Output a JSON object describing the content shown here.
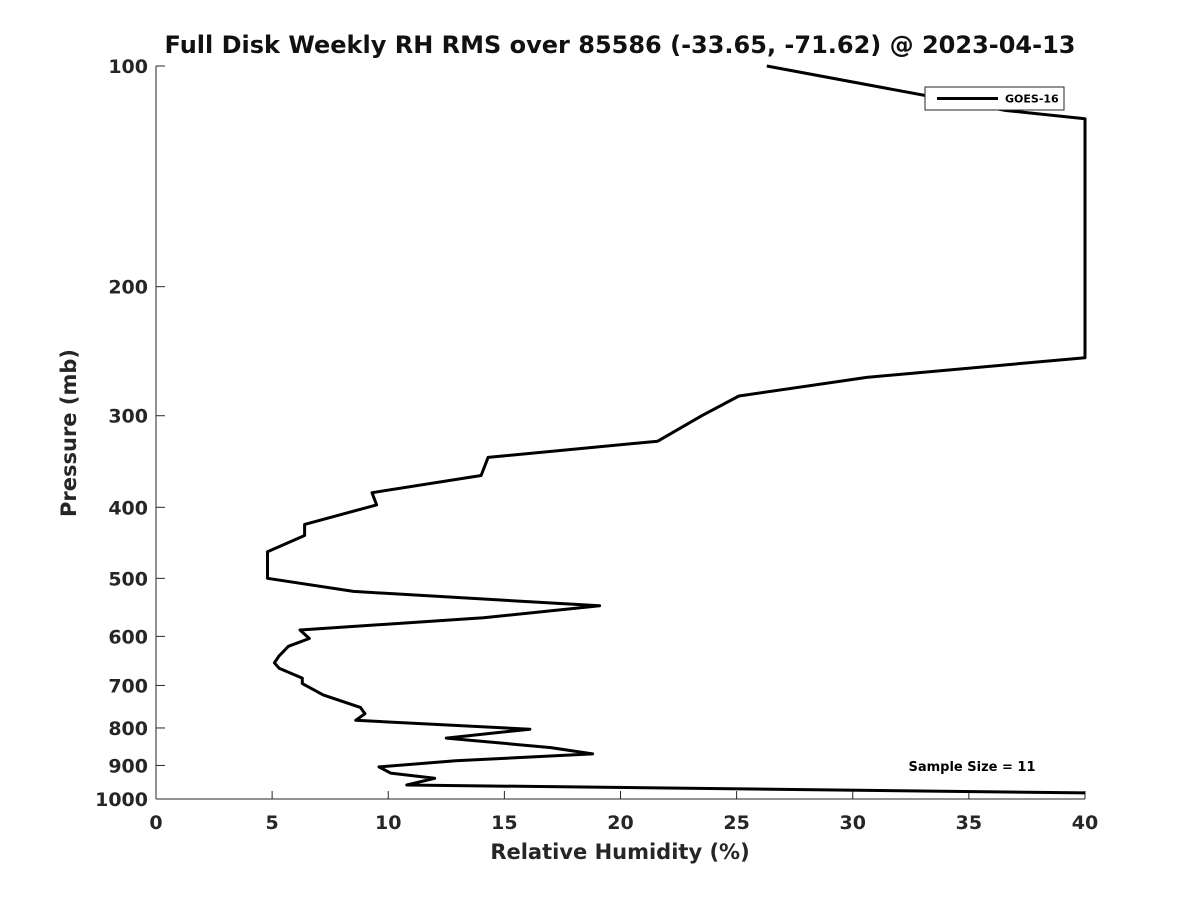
{
  "chart_data": {
    "type": "line",
    "title": "Full Disk Weekly RH RMS over 85586 (-33.65, -71.62) @ 2023-04-13",
    "xlabel": "Relative Humidity (%)",
    "ylabel": "Pressure (mb)",
    "xlim": [
      0,
      40
    ],
    "ylim": [
      100,
      1000
    ],
    "y_scale": "log",
    "y_reversed": true,
    "x_ticks": [
      0,
      5,
      10,
      15,
      20,
      25,
      30,
      35,
      40
    ],
    "y_ticks": [
      100,
      200,
      300,
      400,
      500,
      600,
      700,
      800,
      900,
      1000
    ],
    "grid": false,
    "legend_position": "top-right",
    "series": [
      {
        "name": "GOES-16",
        "color": "#000000",
        "points": [
          [
            26.3,
            100
          ],
          [
            36.6,
            115
          ],
          [
            40.0,
            118
          ],
          [
            40.0,
            250
          ],
          [
            30.6,
            266
          ],
          [
            25.1,
            282
          ],
          [
            23.5,
            300
          ],
          [
            21.6,
            325
          ],
          [
            14.3,
            342
          ],
          [
            14.0,
            362
          ],
          [
            9.3,
            382
          ],
          [
            9.5,
            397
          ],
          [
            6.4,
            422
          ],
          [
            6.4,
            437
          ],
          [
            4.8,
            460
          ],
          [
            4.8,
            500
          ],
          [
            8.5,
            521
          ],
          [
            19.1,
            545
          ],
          [
            14.1,
            566
          ],
          [
            6.2,
            588
          ],
          [
            6.6,
            604
          ],
          [
            5.7,
            619
          ],
          [
            5.3,
            638
          ],
          [
            5.1,
            652
          ],
          [
            5.3,
            663
          ],
          [
            6.3,
            684
          ],
          [
            6.3,
            696
          ],
          [
            7.2,
            721
          ],
          [
            8.8,
            750
          ],
          [
            9.0,
            765
          ],
          [
            8.6,
            781
          ],
          [
            16.1,
            803
          ],
          [
            12.5,
            826
          ],
          [
            17.0,
            851
          ],
          [
            18.8,
            868
          ],
          [
            12.9,
            887
          ],
          [
            9.6,
            904
          ],
          [
            10.1,
            922
          ],
          [
            12.0,
            937
          ],
          [
            10.8,
            957
          ],
          [
            40.0,
            981
          ]
        ]
      }
    ],
    "annotations": [
      "Sample Size = 11"
    ]
  }
}
